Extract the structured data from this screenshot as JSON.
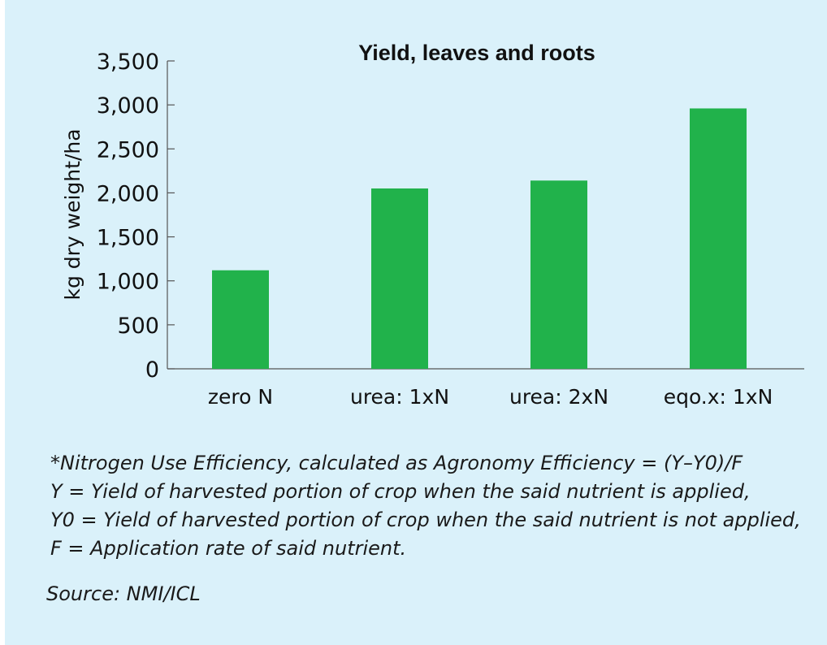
{
  "chart_data": {
    "type": "bar",
    "title": "Yield, leaves and roots",
    "ylabel": "kg dry weight/ha",
    "xlabel": "",
    "categories": [
      "zero N",
      "urea: 1xN",
      "urea: 2xN",
      "eqo.x: 1xN"
    ],
    "values": [
      1120,
      2050,
      2140,
      2960
    ],
    "ylim": [
      0,
      3500
    ],
    "yticks": [
      0,
      500,
      1000,
      1500,
      2000,
      2500,
      3000,
      3500
    ],
    "ytick_labels": [
      "0",
      "500",
      "1,000",
      "1,500",
      "2,000",
      "2,500",
      "3,000",
      "3,500"
    ],
    "bar_color": "#21b24b",
    "background_color": "#daf1fa",
    "grid": false,
    "legend": "none"
  },
  "notes": {
    "lines": [
      "*Nitrogen Use Efficiency, calculated as Agronomy Efficiency = (Y–Y0)/F",
      "Y = Yield of harvested portion of crop when the said nutrient is applied,",
      "Y0 = Yield of harvested portion of crop when the said nutrient is not applied,",
      "F = Application rate of said nutrient."
    ],
    "source": "Source: NMI/ICL"
  }
}
